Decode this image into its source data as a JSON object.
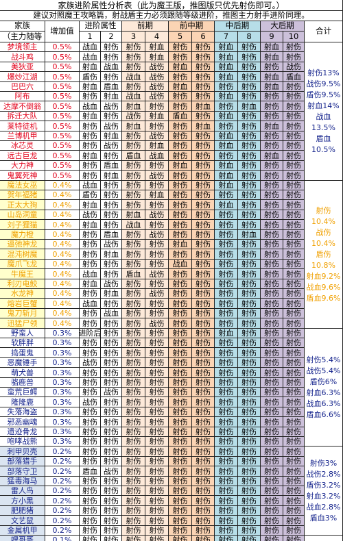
{
  "title": "家族进阶属性分析表（此为魔王版，推图版只优先射伤即可。）",
  "note": "建议对照魔王攻略篇，射战盾主力必须跟随等级进阶，推图主力射手进阶同理。",
  "header": {
    "family": "家族",
    "main_follow": "（主力随等",
    "increase": "增加值",
    "attr": "进阶属性",
    "early": "前期",
    "early_mid": "前中期",
    "mid_late": "中后期",
    "late": "大后期",
    "total": "合计",
    "levels": [
      "1",
      "2",
      "3",
      "4",
      "5",
      "6",
      "7",
      "8",
      "9",
      "10"
    ]
  },
  "colors": {
    "attr": "#ffffff",
    "early": "#fde9d9",
    "early_mid": "#fbd4b4",
    "mid_late": "#b7dee8",
    "late": "#ccc0da",
    "name_white": "#ffffff",
    "name_blue": "#dbe5f1",
    "name_lime": "#ffffcc"
  },
  "rows": [
    {
      "name": "梦境领主",
      "inc": "0.5%",
      "v": [
        "战血",
        "射伤",
        "射伤",
        "射血",
        "射伤",
        "射伤",
        "射血",
        "射伤",
        "射血",
        "射伤"
      ]
    },
    {
      "name": "战斗鸡",
      "inc": "0.5%",
      "v": [
        "战血",
        "射伤",
        "射伤",
        "射血",
        "射伤",
        "射伤",
        "射血",
        "射伤",
        "射血",
        "射伤"
      ]
    },
    {
      "name": "美狄亚",
      "inc": "0.5%",
      "v": [
        "射血",
        "战血",
        "射伤",
        "战伤",
        "射血",
        "射伤",
        "射血",
        "射伤",
        "射伤",
        "战伤"
      ]
    },
    {
      "name": "爆炒江湖",
      "inc": "0.5%",
      "v": [
        "盾伤",
        "射伤",
        "战血",
        "战伤",
        "射伤",
        "射伤",
        "射血",
        "射伤",
        "射血",
        "盾血"
      ]
    },
    {
      "name": "巴巴六",
      "inc": "0.5%",
      "v": [
        "射血",
        "盾血",
        "射伤",
        "战伤",
        "射血",
        "射伤",
        "射伤",
        "射伤",
        "射血",
        "射伤"
      ]
    },
    {
      "name": "阿布",
      "inc": "0.5%",
      "v": [
        "射伤",
        "射血",
        "战血",
        "战伤",
        "射伤",
        "射伤",
        "射血",
        "射伤",
        "射伤",
        "射伤"
      ]
    },
    {
      "name": "达摩不倒翁",
      "inc": "0.5%",
      "v": [
        "战血",
        "战伤",
        "射血",
        "射伤",
        "射伤",
        "射血",
        "射伤",
        "射血",
        "射伤",
        "射伤"
      ]
    },
    {
      "name": "拆迁大队",
      "inc": "0.5%",
      "v": [
        "射血",
        "射伤",
        "战伤",
        "射血",
        "盾血",
        "射伤",
        "射血",
        "射伤",
        "射伤",
        "射伤"
      ]
    },
    {
      "name": "莱特徒机",
      "inc": "0.5%",
      "v": [
        "射伤",
        "战伤",
        "射血",
        "射伤",
        "射伤",
        "射血",
        "射伤",
        "射伤",
        "射血",
        "射伤"
      ]
    },
    {
      "name": "兰博机甲",
      "inc": "0.5%",
      "v": [
        "射伤",
        "射血",
        "射伤",
        "战伤",
        "射伤",
        "射伤",
        "射血",
        "射伤",
        "射伤",
        "射伤"
      ]
    },
    {
      "name": "冰芯灵",
      "inc": "0.5%",
      "v": [
        "射伤",
        "战伤",
        "射伤",
        "射血",
        "射伤",
        "射伤",
        "射血",
        "射伤",
        "射伤",
        "射伤"
      ]
    },
    {
      "name": "远古巨龙",
      "inc": "0.5%",
      "v": [
        "射血",
        "射伤",
        "盾血",
        "战血",
        "射伤",
        "射伤",
        "射伤",
        "射伤",
        "射血",
        "射伤"
      ]
    },
    {
      "name": "大力神",
      "inc": "0.5%",
      "v": [
        "射伤",
        "盾血",
        "射伤",
        "射伤",
        "射血",
        "射伤",
        "射血",
        "射伤",
        "射伤",
        "射伤"
      ]
    },
    {
      "name": "鬼翼死神",
      "inc": "0.5%",
      "v": [
        "射伤",
        "射血",
        "射伤",
        "战伤",
        "射伤",
        "射伤",
        "射血",
        "射伤",
        "射伤",
        "射伤"
      ]
    },
    {
      "name": "魔法女巫",
      "inc": "0.4%",
      "v": [
        "战血",
        "射伤",
        "射伤",
        "射伤",
        "射伤",
        "射伤",
        "射血",
        "射伤",
        "射伤",
        "射伤"
      ]
    },
    {
      "name": "贺年福猪",
      "inc": "0.4%",
      "v": [
        "盾伤",
        "射伤",
        "射伤",
        "射血",
        "射伤",
        "射伤",
        "射伤",
        "射伤",
        "射伤",
        "射伤"
      ]
    },
    {
      "name": "正太大狗",
      "inc": "0.4%",
      "v": [
        "射血",
        "射伤",
        "射伤",
        "射伤",
        "射伤",
        "射伤",
        "射血",
        "射伤",
        "射伤",
        "射伤"
      ]
    },
    {
      "name": "山岛洞童",
      "inc": "0.4%",
      "v": [
        "战伤",
        "射伤",
        "射血",
        "战伤",
        "射伤",
        "射伤",
        "射伤",
        "射伤",
        "射伤",
        "射伤"
      ]
    },
    {
      "name": "刘子狸猫",
      "inc": "0.4%",
      "v": [
        "射血",
        "射伤",
        "战血",
        "射伤",
        "射伤",
        "射伤",
        "射伤",
        "射伤",
        "射伤",
        "射伤"
      ]
    },
    {
      "name": "魔力橙",
      "inc": "0.4%",
      "v": [
        "射伤",
        "盾血",
        "射伤",
        "战伤",
        "射伤",
        "射伤",
        "射伤",
        "射血",
        "射伤",
        "射伤"
      ]
    },
    {
      "name": "逼弛神龙",
      "inc": "0.4%",
      "v": [
        "射伤",
        "战伤",
        "射伤",
        "射伤",
        "射血",
        "射伤",
        "射伤",
        "射伤",
        "射伤",
        "射伤"
      ]
    },
    {
      "name": "混沌树魔",
      "inc": "0.4%",
      "v": [
        "射伤",
        "射血",
        "射伤",
        "射伤",
        "射伤",
        "射伤",
        "射伤",
        "射伤",
        "射伤",
        "射伤"
      ]
    },
    {
      "name": "魔爪飞龙",
      "inc": "0.4%",
      "v": [
        "射伤",
        "射伤",
        "射伤",
        "射伤",
        "战血",
        "射伤",
        "射伤",
        "射伤",
        "射伤",
        "射伤"
      ]
    },
    {
      "name": "牛魔王",
      "inc": "0.4%",
      "v": [
        "战血",
        "射伤",
        "盾血",
        "战伤",
        "射伤",
        "射伤",
        "射伤",
        "射伤",
        "射伤",
        "射伤"
      ]
    },
    {
      "name": "利刃电鲛",
      "inc": "0.4%",
      "v": [
        "射血",
        "战伤",
        "射伤",
        "射伤",
        "射伤",
        "射伤",
        "射伤",
        "射伤",
        "射伤",
        "射伤"
      ]
    },
    {
      "name": "水龙神",
      "inc": "0.4%",
      "v": [
        "射伤",
        "射血",
        "射伤",
        "战伤",
        "射伤",
        "射伤",
        "射伤",
        "射伤",
        "射伤",
        "射伤"
      ]
    },
    {
      "name": "熔岩巨蟹",
      "inc": "0.4%",
      "v": [
        "战血",
        "射伤",
        "射伤",
        "射伤",
        "射伤",
        "射伤",
        "射伤",
        "射伤",
        "射伤",
        "射伤"
      ]
    },
    {
      "name": "鬼刀斩月",
      "inc": "0.4%",
      "v": [
        "射伤",
        "战血",
        "射伤",
        "射伤",
        "射伤",
        "射伤",
        "射伤",
        "射伤",
        "射伤",
        "射伤"
      ]
    },
    {
      "name": "迅猛尸领",
      "inc": "0.4%",
      "v": [
        "射伤",
        "射伤",
        "射伤",
        "战伤",
        "射伤",
        "射伤",
        "射伤",
        "射伤",
        "射伤",
        "射伤"
      ]
    },
    {
      "name": "野蛮人",
      "inc": "0.3%",
      "v": [
        "进阶后",
        "射伤",
        "射伤",
        "射伤",
        "射伤",
        "射伤",
        "射血",
        "射伤",
        "射伤",
        "射伤"
      ]
    },
    {
      "name": "软胖胖",
      "inc": "0.3%",
      "v": [
        "射伤",
        "射伤",
        "射伤",
        "射伤",
        "射伤",
        "射伤",
        "射伤",
        "射伤",
        "射伤",
        "射伤"
      ]
    },
    {
      "name": "捣蛋鬼",
      "inc": "0.3%",
      "v": [
        "射伤",
        "射伤",
        "射伤",
        "射伤",
        "射伤",
        "射伤",
        "射伤",
        "射伤",
        "射伤",
        "射伤"
      ]
    },
    {
      "name": "恶魔锤手",
      "inc": "0.3%",
      "v": [
        "战伤",
        "射伤",
        "射伤",
        "射伤",
        "射伤",
        "射伤",
        "射伤",
        "射伤",
        "射伤",
        "射伤"
      ]
    },
    {
      "name": "萌犬兽",
      "inc": "0.3%",
      "v": [
        "射伤",
        "射伤",
        "射伤",
        "射伤",
        "射伤",
        "射伤",
        "射伤",
        "射伤",
        "射伤",
        "射伤"
      ]
    },
    {
      "name": "骆鹿兽",
      "inc": "0.3%",
      "v": [
        "射伤",
        "射伤",
        "射伤",
        "射伤",
        "射伤",
        "射伤",
        "射伤",
        "射伤",
        "射伤",
        "射伤"
      ]
    },
    {
      "name": "蛮荒巨鳄",
      "inc": "0.3%",
      "v": [
        "射伤",
        "战伤",
        "射伤",
        "射伤",
        "射伤",
        "射伤",
        "射伤",
        "射伤",
        "射伤",
        "射伤"
      ]
    },
    {
      "name": "隆隆鹿",
      "inc": "0.3%",
      "v": [
        "战伤",
        "射伤",
        "射伤",
        "射伤",
        "射伤",
        "射伤",
        "射伤",
        "射伤",
        "射伤",
        "射伤"
      ]
    },
    {
      "name": "失落海盗",
      "inc": "0.3%",
      "v": [
        "射伤",
        "射伤",
        "射伤",
        "射伤",
        "射伤",
        "射伤",
        "射伤",
        "射伤",
        "射伤",
        "射伤"
      ]
    },
    {
      "name": "邪恶幽魂",
      "inc": "0.3%",
      "v": [
        "射伤",
        "射伤",
        "射伤",
        "射伤",
        "射伤",
        "射伤",
        "射伤",
        "射伤",
        "射伤",
        "射伤"
      ]
    },
    {
      "name": "遗迹骨龙",
      "inc": "0.3%",
      "v": [
        "射伤",
        "射伤",
        "射伤",
        "射伤",
        "射伤",
        "射伤",
        "射伤",
        "射伤",
        "射伤",
        "射伤"
      ]
    },
    {
      "name": "咆哮战熊",
      "inc": "0.3%",
      "v": [
        "射伤",
        "射伤",
        "射伤",
        "射伤",
        "射伤",
        "射伤",
        "射伤",
        "射伤",
        "射伤",
        "射伤"
      ]
    },
    {
      "name": "刺甲贝壳",
      "inc": "0.2%",
      "v": [
        "射伤",
        "射伤",
        "射伤",
        "射伤",
        "射伤",
        "射伤",
        "射伤",
        "射伤",
        "射伤",
        "射伤"
      ]
    },
    {
      "name": "部落猎手",
      "inc": "0.2%",
      "v": [
        "射伤",
        "射伤",
        "射伤",
        "射伤",
        "射伤",
        "射伤",
        "射伤",
        "射伤",
        "射伤",
        "射伤"
      ]
    },
    {
      "name": "部落守卫",
      "inc": "0.2%",
      "v": [
        "盾血",
        "战伤",
        "射伤",
        "射伤",
        "射伤",
        "射伤",
        "射伤",
        "射伤",
        "射伤",
        "射伤"
      ]
    },
    {
      "name": "猛毒海马",
      "inc": "0.2%",
      "v": [
        "射伤",
        "射伤",
        "射伤",
        "射伤",
        "射伤",
        "射伤",
        "射伤",
        "射伤",
        "射伤",
        "射伤"
      ]
    },
    {
      "name": "雷人鸟",
      "inc": "0.2%",
      "v": [
        "射伤",
        "射伤",
        "射伤",
        "射伤",
        "射伤",
        "射伤",
        "射伤",
        "射伤",
        "射伤",
        "射伤"
      ]
    },
    {
      "name": "方小黑",
      "inc": "0.2%",
      "v": [
        "射伤",
        "射伤",
        "射伤",
        "射伤",
        "射伤",
        "射伤",
        "射伤",
        "射伤",
        "射伤",
        "射伤"
      ]
    },
    {
      "name": "肥肥猪",
      "inc": "0.2%",
      "v": [
        "射伤",
        "射伤",
        "射伤",
        "射伤",
        "射伤",
        "射伤",
        "射伤",
        "射伤",
        "射伤",
        "射伤"
      ]
    },
    {
      "name": "文艺鼠",
      "inc": "0.2%",
      "v": [
        "射伤",
        "射伤",
        "射伤",
        "射伤",
        "射伤",
        "射伤",
        "射伤",
        "射伤",
        "射伤",
        "射伤"
      ]
    },
    {
      "name": "金属机甲",
      "inc": "0.2%",
      "v": [
        "射伤",
        "射伤",
        "射伤",
        "射伤",
        "射伤",
        "射伤",
        "射伤",
        "射伤",
        "射伤",
        "射伤"
      ]
    },
    {
      "name": "嘿哥哥",
      "inc": "0.1%",
      "v": [
        "射伤",
        "射伤",
        "射伤",
        "射伤",
        "射伤",
        "射伤",
        "射伤",
        "射伤",
        "射伤",
        "射伤"
      ]
    }
  ],
  "groups": [
    {
      "tier": "0.5%",
      "lines": [
        "射伤13%",
        "战伤9.5%",
        "盾伤9.5%",
        "射血14%",
        "战血",
        "13.5%",
        "盾血",
        "10.5%"
      ]
    },
    {
      "tier": "0.4%",
      "lines": [
        "射伤",
        "10.4%",
        "战伤",
        "10.4%",
        "盾伤",
        "10.8%",
        "射血9.2%",
        "战血9.6%",
        "盾血9.6%"
      ]
    },
    {
      "tier": "0.3%",
      "lines": [
        "射伤5.4%",
        "战伤5.4%",
        "盾伤6%",
        "射血6.3%",
        "战血6.3%",
        "盾血6.6%"
      ]
    },
    {
      "tier": "0.2%",
      "lines": [
        "射伤3%",
        "战伤2.8%",
        "盾伤3.2%",
        "射血3.2%",
        "战血2.8%",
        "盾血3%"
      ]
    }
  ]
}
